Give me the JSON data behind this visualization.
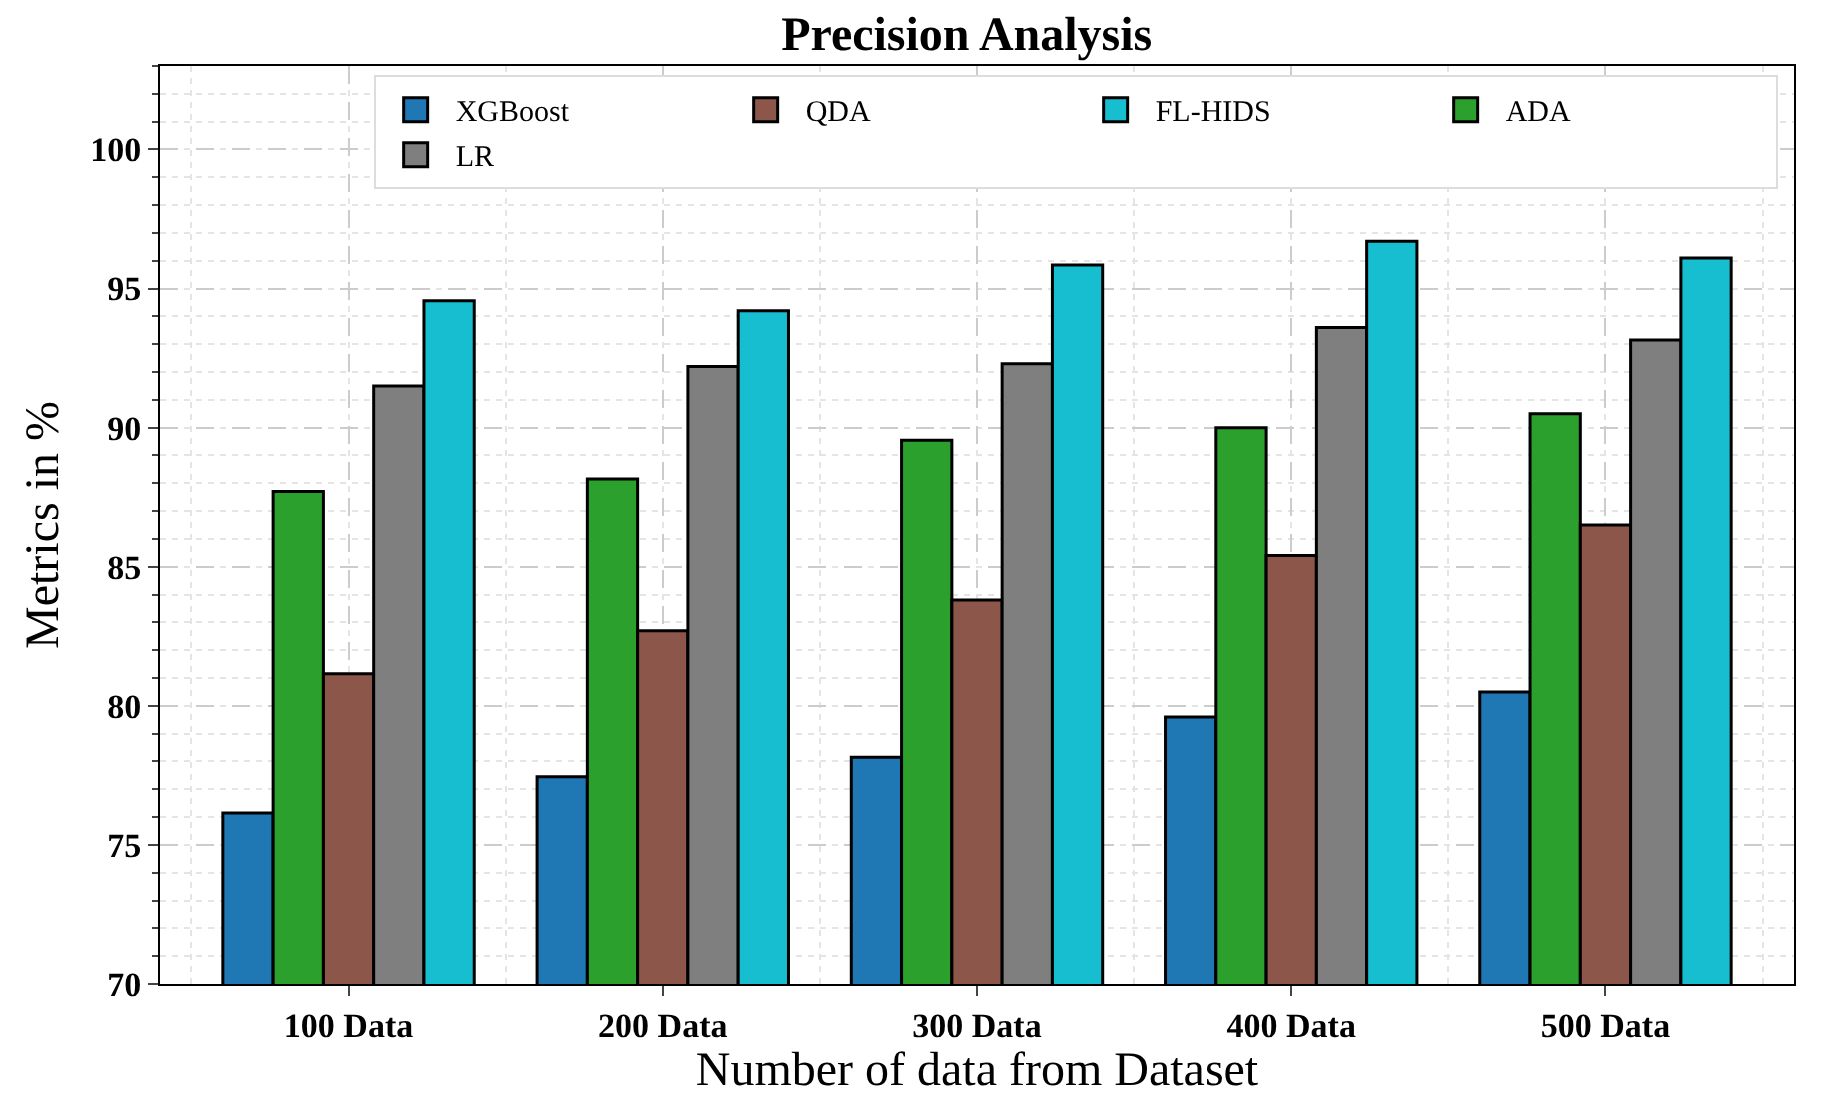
{
  "chart_data": {
    "type": "bar",
    "title": "Precision Analysis",
    "xlabel": "Number of data from Dataset",
    "ylabel": "Metrics in %",
    "categories": [
      "100 Data",
      "200 Data",
      "300 Data",
      "400 Data",
      "500 Data"
    ],
    "series": [
      {
        "name": "XGBoost",
        "color": "#1f77b4",
        "values": [
          76.15,
          77.45,
          78.15,
          79.6,
          80.5
        ]
      },
      {
        "name": "ADA",
        "color": "#2ca02c",
        "values": [
          87.7,
          88.15,
          89.55,
          90.0,
          90.5
        ]
      },
      {
        "name": "QDA",
        "color": "#8c564b",
        "values": [
          81.15,
          82.7,
          83.8,
          85.4,
          86.5
        ]
      },
      {
        "name": "LR",
        "color": "#7f7f7f",
        "values": [
          91.5,
          92.2,
          92.3,
          93.6,
          93.15
        ]
      },
      {
        "name": "FL-HIDS",
        "color": "#17becf",
        "values": [
          94.56,
          94.2,
          95.85,
          96.7,
          96.1
        ]
      }
    ],
    "ylim": [
      70,
      103
    ],
    "yticks": [
      70,
      75,
      80,
      85,
      90,
      95,
      100
    ],
    "grid": true,
    "legend": "top right"
  }
}
